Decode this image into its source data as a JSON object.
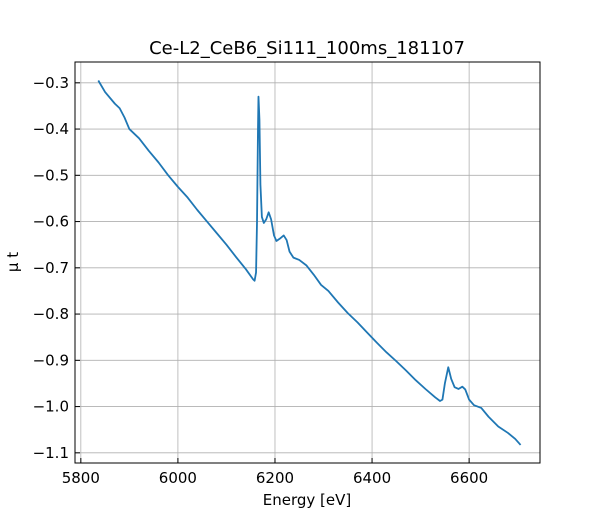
{
  "chart_data": {
    "type": "line",
    "title": "Ce-L2_CeB6_Si111_100ms_181107",
    "xlabel": "Energy [eV]",
    "ylabel": "μ t",
    "x": [
      5836,
      5850,
      5870,
      5880,
      5890,
      5900,
      5920,
      5940,
      5960,
      5980,
      6000,
      6020,
      6040,
      6060,
      6080,
      6100,
      6120,
      6140,
      6155,
      6158,
      6161,
      6163,
      6165,
      6166,
      6168,
      6170,
      6173,
      6177,
      6182,
      6187,
      6192,
      6198,
      6203,
      6210,
      6218,
      6224,
      6230,
      6238,
      6250,
      6265,
      6280,
      6295,
      6310,
      6330,
      6350,
      6370,
      6390,
      6410,
      6430,
      6450,
      6470,
      6490,
      6510,
      6530,
      6540,
      6545,
      6550,
      6557,
      6563,
      6570,
      6578,
      6586,
      6592,
      6600,
      6610,
      6625,
      6640,
      6660,
      6680,
      6695,
      6706
    ],
    "series": [
      {
        "name": "Ce-L2",
        "color": "#1f77b4",
        "values": [
          -0.295,
          -0.32,
          -0.345,
          -0.355,
          -0.375,
          -0.4,
          -0.42,
          -0.447,
          -0.472,
          -0.5,
          -0.525,
          -0.548,
          -0.575,
          -0.6,
          -0.625,
          -0.65,
          -0.677,
          -0.703,
          -0.725,
          -0.728,
          -0.71,
          -0.6,
          -0.4,
          -0.33,
          -0.38,
          -0.52,
          -0.59,
          -0.603,
          -0.595,
          -0.58,
          -0.595,
          -0.63,
          -0.642,
          -0.637,
          -0.63,
          -0.64,
          -0.665,
          -0.678,
          -0.683,
          -0.695,
          -0.715,
          -0.737,
          -0.75,
          -0.775,
          -0.798,
          -0.818,
          -0.84,
          -0.862,
          -0.883,
          -0.902,
          -0.922,
          -0.943,
          -0.962,
          -0.98,
          -0.988,
          -0.985,
          -0.95,
          -0.915,
          -0.94,
          -0.958,
          -0.962,
          -0.957,
          -0.963,
          -0.985,
          -0.997,
          -1.003,
          -1.022,
          -1.043,
          -1.057,
          -1.07,
          -1.083
        ]
      }
    ],
    "xlim": [
      5788,
      6746
    ],
    "ylim": [
      -1.122,
      -0.255
    ],
    "xticks": [
      5800,
      6000,
      6200,
      6400,
      6600
    ],
    "yticks": [
      {
        "value": -0.3,
        "label": "−0.3"
      },
      {
        "value": -0.4,
        "label": "−0.4"
      },
      {
        "value": -0.5,
        "label": "−0.5"
      },
      {
        "value": -0.6,
        "label": "−0.6"
      },
      {
        "value": -0.7,
        "label": "−0.7"
      },
      {
        "value": -0.8,
        "label": "−0.8"
      },
      {
        "value": -0.9,
        "label": "−0.9"
      },
      {
        "value": -1.0,
        "label": "−1.0"
      },
      {
        "value": -1.1,
        "label": "−1.1"
      }
    ],
    "grid": true
  }
}
